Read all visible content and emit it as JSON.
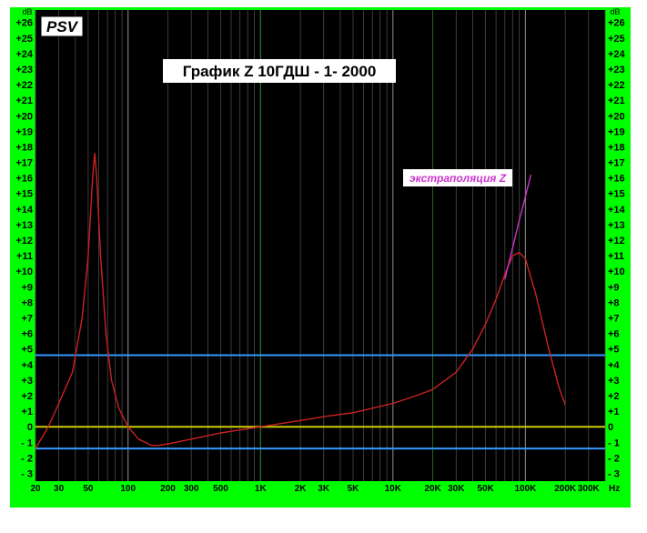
{
  "chart_data": {
    "type": "line",
    "title": "График Z  10ГДШ - 1- 2000",
    "badge": "PSV",
    "annotation": "экстраполяция Z",
    "ylabel": "dB",
    "xlabel": "Hz",
    "xscale": "log",
    "xlim": [
      20,
      400000
    ],
    "ylim": [
      -3.5,
      26.8
    ],
    "x_ticks": [
      {
        "v": 20,
        "label": "20"
      },
      {
        "v": 30,
        "label": "30"
      },
      {
        "v": 50,
        "label": "50"
      },
      {
        "v": 100,
        "label": "100"
      },
      {
        "v": 200,
        "label": "200"
      },
      {
        "v": 300,
        "label": "300"
      },
      {
        "v": 500,
        "label": "500"
      },
      {
        "v": 1000,
        "label": "1K"
      },
      {
        "v": 2000,
        "label": "2K"
      },
      {
        "v": 3000,
        "label": "3K"
      },
      {
        "v": 5000,
        "label": "5K"
      },
      {
        "v": 10000,
        "label": "10K"
      },
      {
        "v": 20000,
        "label": "20K"
      },
      {
        "v": 30000,
        "label": "30K"
      },
      {
        "v": 50000,
        "label": "50K"
      },
      {
        "v": 100000,
        "label": "100K"
      },
      {
        "v": 200000,
        "label": "200K"
      },
      {
        "v": 300000,
        "label": "300K"
      }
    ],
    "y_ticks": [
      {
        "v": 26,
        "label": "+26"
      },
      {
        "v": 25,
        "label": "+25"
      },
      {
        "v": 24,
        "label": "+24"
      },
      {
        "v": 23,
        "label": "+23"
      },
      {
        "v": 22,
        "label": "+22"
      },
      {
        "v": 21,
        "label": "+21"
      },
      {
        "v": 20,
        "label": "+20"
      },
      {
        "v": 19,
        "label": "+19"
      },
      {
        "v": 18,
        "label": "+18"
      },
      {
        "v": 17,
        "label": "+17"
      },
      {
        "v": 16,
        "label": "+16"
      },
      {
        "v": 15,
        "label": "+15"
      },
      {
        "v": 14,
        "label": "+14"
      },
      {
        "v": 13,
        "label": "+13"
      },
      {
        "v": 12,
        "label": "+12"
      },
      {
        "v": 11,
        "label": "+11"
      },
      {
        "v": 10,
        "label": "+10"
      },
      {
        "v": 9,
        "label": "+9"
      },
      {
        "v": 8,
        "label": "+8"
      },
      {
        "v": 7,
        "label": "+7"
      },
      {
        "v": 6,
        "label": "+6"
      },
      {
        "v": 5,
        "label": "+5"
      },
      {
        "v": 4,
        "label": "+4"
      },
      {
        "v": 3,
        "label": "+3"
      },
      {
        "v": 2,
        "label": "+2"
      },
      {
        "v": 1,
        "label": "+1"
      },
      {
        "v": 0,
        "label": "0"
      },
      {
        "v": -1,
        "label": "- 1"
      },
      {
        "v": -2,
        "label": "- 2"
      },
      {
        "v": -3,
        "label": "- 3"
      }
    ],
    "hlines": [
      {
        "y": 0,
        "color": "#cccc00"
      },
      {
        "y": 4.6,
        "color": "#3399ff"
      },
      {
        "y": -1.4,
        "color": "#3399ff"
      }
    ],
    "series": [
      {
        "color": "#cc2222",
        "points": [
          [
            20,
            -1.4
          ],
          [
            25,
            0
          ],
          [
            30,
            1.5
          ],
          [
            38,
            3.5
          ],
          [
            45,
            7
          ],
          [
            50,
            11
          ],
          [
            54,
            16
          ],
          [
            56,
            17.6
          ],
          [
            58,
            16
          ],
          [
            62,
            11
          ],
          [
            68,
            6
          ],
          [
            75,
            3
          ],
          [
            85,
            1.2
          ],
          [
            100,
            0
          ],
          [
            120,
            -0.8
          ],
          [
            150,
            -1.2
          ],
          [
            170,
            -1.2
          ],
          [
            200,
            -1.1
          ],
          [
            300,
            -0.8
          ],
          [
            500,
            -0.4
          ],
          [
            1000,
            0
          ],
          [
            2000,
            0.4
          ],
          [
            3000,
            0.65
          ],
          [
            5000,
            0.9
          ],
          [
            10000,
            1.5
          ],
          [
            15000,
            2
          ],
          [
            20000,
            2.4
          ],
          [
            30000,
            3.5
          ],
          [
            40000,
            5
          ],
          [
            50000,
            6.6
          ],
          [
            60000,
            8.2
          ],
          [
            70000,
            9.8
          ],
          [
            80000,
            11
          ],
          [
            90000,
            11.2
          ],
          [
            100000,
            10.8
          ],
          [
            120000,
            8.5
          ],
          [
            150000,
            5
          ],
          [
            180000,
            2.5
          ],
          [
            200000,
            1.4
          ]
        ]
      },
      {
        "color": "#cc33cc",
        "points": [
          [
            70000,
            9.5
          ],
          [
            80000,
            11.5
          ],
          [
            90000,
            13.3
          ],
          [
            100000,
            14.8
          ],
          [
            110000,
            16.2
          ]
        ]
      }
    ]
  }
}
